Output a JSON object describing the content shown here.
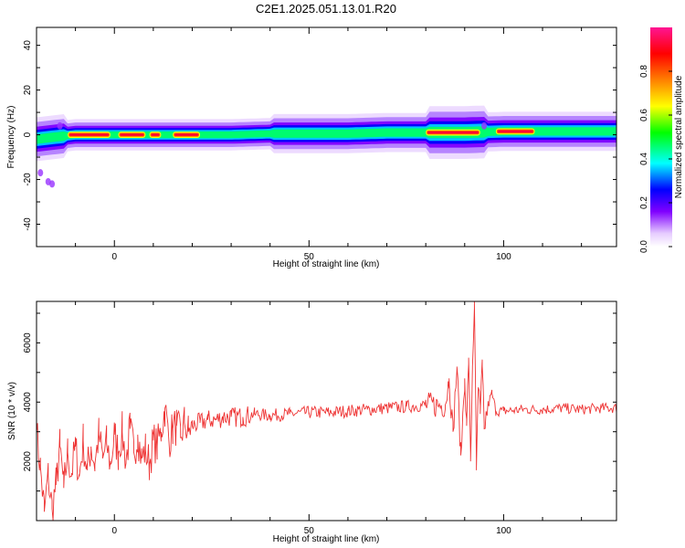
{
  "figure": {
    "title": "C2E1.2025.051.13.01.R20"
  },
  "chart_data": [
    {
      "type": "heatmap",
      "title": "C2E1.2025.051.13.01.R20",
      "xlabel": "Height of straight line (km)",
      "ylabel": "Frequency (Hz)",
      "xlim": [
        -20,
        129
      ],
      "ylim": [
        -50,
        48
      ],
      "xticks": [
        0,
        50,
        100
      ],
      "yticks": [
        -40,
        -20,
        0,
        20,
        40
      ],
      "colorbar": {
        "label": "Normalized spectral amplitude",
        "range": [
          0,
          1
        ],
        "ticks": [
          0.0,
          0.2,
          0.4,
          0.6,
          0.8
        ],
        "colors": [
          "#ffffff",
          "#e6ccff",
          "#8000ff",
          "#0000ff",
          "#00ffff",
          "#00ff00",
          "#ffff00",
          "#ff8000",
          "#ff0000",
          "#ff1493"
        ]
      },
      "band_center_hz": [
        [
          -20,
          -2
        ],
        [
          -15,
          -1
        ],
        [
          -10,
          0
        ],
        [
          0,
          0
        ],
        [
          10,
          0
        ],
        [
          20,
          0
        ],
        [
          30,
          0
        ],
        [
          40,
          0.5
        ],
        [
          50,
          0.5
        ],
        [
          60,
          0.5
        ],
        [
          70,
          1
        ],
        [
          80,
          1
        ],
        [
          90,
          1
        ],
        [
          100,
          1.5
        ],
        [
          110,
          1.5
        ],
        [
          120,
          1.5
        ],
        [
          129,
          1.5
        ]
      ],
      "peak_segments_km": [
        [
          -12,
          -1
        ],
        [
          1,
          8
        ],
        [
          9,
          12
        ],
        [
          15,
          22
        ],
        [
          80,
          94
        ],
        [
          98,
          108
        ]
      ],
      "scattered_points": [
        [
          -19,
          -17
        ],
        [
          -17,
          -21
        ],
        [
          -16,
          -22
        ],
        [
          -14,
          4
        ],
        [
          95,
          4
        ]
      ]
    },
    {
      "type": "line",
      "xlabel": "Height of straight line (km)",
      "ylabel": "SNR (10 * v/v)",
      "xlim": [
        -20,
        129
      ],
      "ylim": [
        0,
        7400
      ],
      "xticks": [
        0,
        50,
        100
      ],
      "yticks": [
        2000,
        4000,
        6000
      ],
      "line_color": "#ee3333",
      "x": [
        -20,
        -19,
        -18,
        -17,
        -16,
        -15,
        -14,
        -13,
        -12,
        -11,
        -10,
        -9,
        -8,
        -7,
        -6,
        -5,
        -4,
        -3,
        -2,
        -1,
        0,
        1,
        2,
        3,
        4,
        5,
        6,
        7,
        8,
        9,
        10,
        11,
        12,
        13,
        14,
        15,
        16,
        17,
        18,
        19,
        20,
        22,
        24,
        26,
        28,
        30,
        33,
        36,
        40,
        45,
        50,
        55,
        60,
        65,
        70,
        75,
        80,
        83,
        85,
        86,
        87,
        88,
        89,
        90,
        90.5,
        91,
        91.5,
        92,
        92.5,
        93,
        93.5,
        94,
        94.5,
        95,
        96,
        97,
        98,
        100,
        105,
        110,
        115,
        120,
        125,
        129
      ],
      "y": [
        3000,
        1800,
        300,
        1500,
        400,
        1200,
        2500,
        1100,
        2300,
        1600,
        2500,
        1500,
        2700,
        1700,
        2500,
        1900,
        2900,
        2100,
        2600,
        1900,
        2900,
        2300,
        3000,
        2000,
        3100,
        2300,
        2900,
        2100,
        2400,
        1900,
        2700,
        2500,
        3000,
        3800,
        2700,
        3100,
        3200,
        2800,
        3300,
        3000,
        3200,
        3300,
        3400,
        3400,
        3500,
        3500,
        3500,
        3600,
        3550,
        3600,
        3650,
        3650,
        3700,
        3750,
        3800,
        3850,
        3900,
        3900,
        3900,
        4800,
        3000,
        5200,
        2200,
        4800,
        3200,
        5500,
        2000,
        5200,
        7400,
        1700,
        4500,
        3600,
        5200,
        3100,
        3900,
        4300,
        3700,
        3700,
        3750,
        3750,
        3800,
        3750,
        3800,
        3800
      ]
    }
  ]
}
